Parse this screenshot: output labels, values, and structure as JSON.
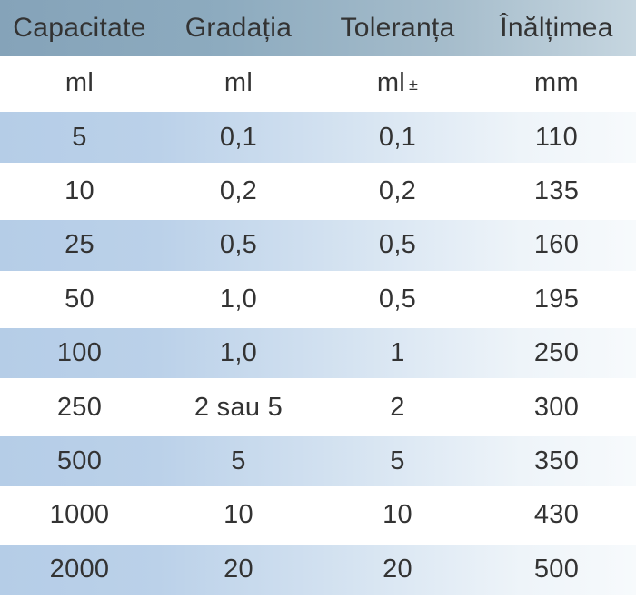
{
  "table": {
    "headers": [
      "Capacitate",
      "Gradația",
      "Toleranța",
      "Înălțimea"
    ],
    "unit_row": {
      "capacity": "ml",
      "graduation": "ml",
      "tolerance_main": "ml",
      "tolerance_suffix": "±",
      "height": "mm"
    },
    "rows": [
      {
        "capacity": "5",
        "graduation": "0,1",
        "tolerance": "0,1",
        "height": "110"
      },
      {
        "capacity": "10",
        "graduation": "0,2",
        "tolerance": "0,2",
        "height": "135"
      },
      {
        "capacity": "25",
        "graduation": "0,5",
        "tolerance": "0,5",
        "height": "160"
      },
      {
        "capacity": "50",
        "graduation": "1,0",
        "tolerance": "0,5",
        "height": "195"
      },
      {
        "capacity": "100",
        "graduation": "1,0",
        "tolerance": "1",
        "height": "250"
      },
      {
        "capacity": "250",
        "graduation": "2 sau 5",
        "tolerance": "2",
        "height": "300"
      },
      {
        "capacity": "500",
        "graduation": "5",
        "tolerance": "5",
        "height": "350"
      },
      {
        "capacity": "1000",
        "graduation": "10",
        "tolerance": "10",
        "height": "430"
      },
      {
        "capacity": "2000",
        "graduation": "20",
        "tolerance": "20",
        "height": "500"
      }
    ]
  },
  "colors": {
    "header_gradient_left": "#85a3b9",
    "header_gradient_right": "#c6d6e0",
    "stripe_gradient_left": "#b5cde7",
    "stripe_gradient_right": "#f7fafc",
    "text": "#333333",
    "background": "#ffffff"
  },
  "chart_data": {
    "type": "table",
    "title": "",
    "columns": [
      "Capacitate",
      "Gradația",
      "Toleranța",
      "Înălțimea"
    ],
    "units": [
      "ml",
      "ml",
      "ml ±",
      "mm"
    ],
    "rows": [
      [
        "5",
        "0,1",
        "0,1",
        "110"
      ],
      [
        "10",
        "0,2",
        "0,2",
        "135"
      ],
      [
        "25",
        "0,5",
        "0,5",
        "160"
      ],
      [
        "50",
        "1,0",
        "0,5",
        "195"
      ],
      [
        "100",
        "1,0",
        "1",
        "250"
      ],
      [
        "250",
        "2 sau 5",
        "2",
        "300"
      ],
      [
        "500",
        "5",
        "5",
        "350"
      ],
      [
        "1000",
        "10",
        "10",
        "430"
      ],
      [
        "2000",
        "20",
        "20",
        "500"
      ]
    ]
  }
}
